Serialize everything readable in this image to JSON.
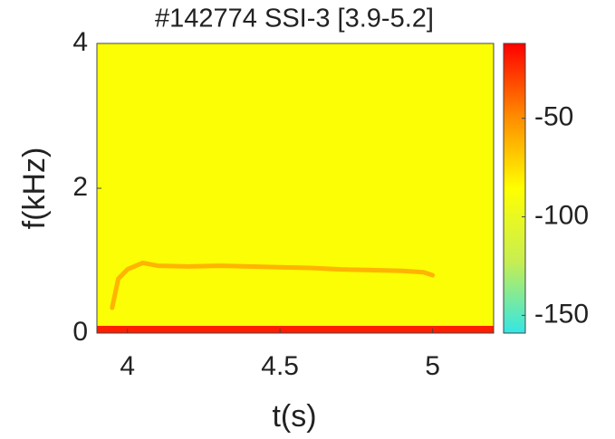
{
  "chart_data": {
    "type": "spectrogram",
    "title": "#142774 SSI-3 [3.9-5.2]",
    "xlabel": "t(s)",
    "ylabel": "f(kHz)",
    "xlim": [
      3.9,
      5.2
    ],
    "xticks": [
      4,
      4.5,
      5
    ],
    "ylim": [
      0,
      4
    ],
    "yticks": [
      0,
      2,
      4
    ],
    "colorbar": {
      "lim": [
        -159,
        -12
      ],
      "ticks": [
        -50,
        -100,
        -150
      ],
      "colormap": [
        "#33e6e6",
        "#c8ee50",
        "#ffff00",
        "#ff8a00",
        "#ff0000"
      ]
    },
    "background_level": -88,
    "low_band": {
      "f_max": 0.1,
      "level": -20
    },
    "mode": {
      "level": -62,
      "x": [
        3.95,
        3.97,
        4.0,
        4.05,
        4.1,
        4.2,
        4.3,
        4.4,
        4.5,
        4.6,
        4.7,
        4.8,
        4.9,
        4.97,
        5.0
      ],
      "values": [
        0.35,
        0.75,
        0.88,
        0.97,
        0.93,
        0.92,
        0.93,
        0.92,
        0.91,
        0.9,
        0.88,
        0.87,
        0.86,
        0.84,
        0.8
      ]
    }
  }
}
